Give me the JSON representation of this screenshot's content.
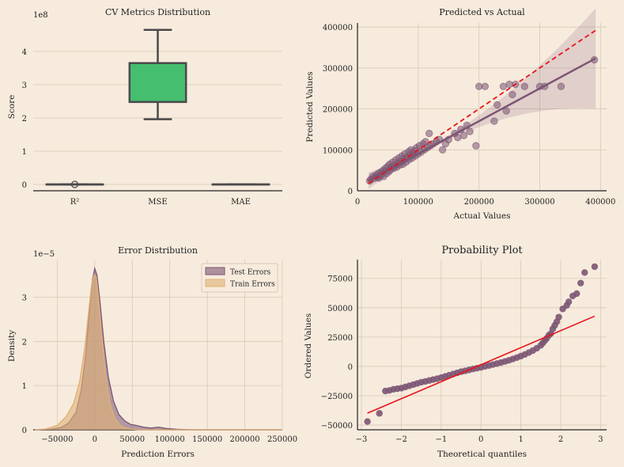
{
  "colors": {
    "background": "#f7ebdd",
    "grid": "#d9c9b6",
    "box_fill": "#45be70",
    "box_edge": "#4a4a4a",
    "purple": "#7b5573",
    "tan": "#e0b174",
    "red": "#e8131a"
  },
  "chart_data": [
    {
      "type": "box",
      "title": "CV Metrics Distribution",
      "ylabel": "Score",
      "offset_label": "1e8",
      "categories": [
        "R²",
        "MSE",
        "MAE"
      ],
      "yticks": [
        "0",
        "1",
        "2",
        "3",
        "4"
      ],
      "ylim": [
        -0.2,
        4.6
      ],
      "boxes": [
        {
          "name": "R²",
          "min": 0.0,
          "q1": 0.0,
          "median": 0.0,
          "q3": 0.0,
          "max": 0.0,
          "outliers": [
            0.0
          ]
        },
        {
          "name": "MSE",
          "min": 1.96,
          "q1": 2.48,
          "median": 3.65,
          "q3": 3.65,
          "max": 4.65,
          "outliers": []
        },
        {
          "name": "MAE",
          "min": 0.0,
          "q1": 0.0,
          "median": 0.0,
          "q3": 0.0,
          "max": 0.0,
          "outliers": []
        }
      ]
    },
    {
      "type": "scatter",
      "title": "Predicted vs Actual",
      "xlabel": "Actual Values",
      "ylabel": "Predicted Values",
      "xticks": [
        "0",
        "100000",
        "200000",
        "300000",
        "400000"
      ],
      "yticks": [
        "0",
        "100000",
        "200000",
        "300000",
        "400000"
      ],
      "xlim": [
        0,
        410000
      ],
      "ylim": [
        0,
        410000
      ],
      "points": [
        [
          20000,
          24000
        ],
        [
          22000,
          28000
        ],
        [
          25000,
          35000
        ],
        [
          27000,
          30000
        ],
        [
          30000,
          38000
        ],
        [
          32000,
          33000
        ],
        [
          34000,
          42000
        ],
        [
          35000,
          31000
        ],
        [
          37000,
          36000
        ],
        [
          38000,
          45000
        ],
        [
          40000,
          40000
        ],
        [
          42000,
          50000
        ],
        [
          43000,
          35000
        ],
        [
          45000,
          48000
        ],
        [
          46000,
          55000
        ],
        [
          48000,
          42000
        ],
        [
          50000,
          60000
        ],
        [
          52000,
          47000
        ],
        [
          53000,
          65000
        ],
        [
          55000,
          52000
        ],
        [
          56000,
          58000
        ],
        [
          58000,
          70000
        ],
        [
          60000,
          55000
        ],
        [
          62000,
          62000
        ],
        [
          63000,
          75000
        ],
        [
          65000,
          58000
        ],
        [
          67000,
          68000
        ],
        [
          68000,
          80000
        ],
        [
          70000,
          63000
        ],
        [
          72000,
          72000
        ],
        [
          73000,
          85000
        ],
        [
          75000,
          65000
        ],
        [
          77000,
          78000
        ],
        [
          78000,
          90000
        ],
        [
          80000,
          70000
        ],
        [
          82000,
          82000
        ],
        [
          84000,
          95000
        ],
        [
          85000,
          76000
        ],
        [
          87000,
          88000
        ],
        [
          88000,
          100000
        ],
        [
          90000,
          80000
        ],
        [
          92000,
          92000
        ],
        [
          94000,
          98000
        ],
        [
          95000,
          85000
        ],
        [
          97000,
          105000
        ],
        [
          100000,
          90000
        ],
        [
          102000,
          110000
        ],
        [
          105000,
          95000
        ],
        [
          108000,
          115000
        ],
        [
          110000,
          100000
        ],
        [
          112000,
          120000
        ],
        [
          115000,
          105000
        ],
        [
          118000,
          140000
        ],
        [
          120000,
          110000
        ],
        [
          125000,
          115000
        ],
        [
          130000,
          120000
        ],
        [
          135000,
          125000
        ],
        [
          140000,
          100000
        ],
        [
          145000,
          115000
        ],
        [
          150000,
          125000
        ],
        [
          160000,
          140000
        ],
        [
          165000,
          130000
        ],
        [
          170000,
          150000
        ],
        [
          175000,
          135000
        ],
        [
          180000,
          160000
        ],
        [
          185000,
          145000
        ],
        [
          195000,
          110000
        ],
        [
          200000,
          255000
        ],
        [
          210000,
          255000
        ],
        [
          225000,
          170000
        ],
        [
          230000,
          210000
        ],
        [
          240000,
          255000
        ],
        [
          245000,
          195000
        ],
        [
          250000,
          260000
        ],
        [
          255000,
          235000
        ],
        [
          260000,
          260000
        ],
        [
          275000,
          255000
        ],
        [
          300000,
          255000
        ],
        [
          308000,
          255000
        ],
        [
          335000,
          255000
        ],
        [
          390000,
          320000
        ]
      ],
      "regression": {
        "slope": 0.8,
        "intercept": 10000,
        "x_range": [
          18000,
          392000
        ]
      },
      "identity_line": {
        "x_range": [
          18000,
          392000
        ]
      }
    },
    {
      "type": "density",
      "title": "Error Distribution",
      "xlabel": "Prediction Errors",
      "ylabel": "Density",
      "offset_label": "1e−5",
      "xticks": [
        "−50000",
        "0",
        "50000",
        "100000",
        "150000",
        "200000",
        "250000"
      ],
      "yticks": [
        "0",
        "1",
        "2",
        "3"
      ],
      "xlim": [
        -82000,
        250000
      ],
      "ylim": [
        0,
        3.85
      ],
      "legend_position": "top-right",
      "series": [
        {
          "name": "Test Errors",
          "points": [
            [
              -80000,
              0
            ],
            [
              -60000,
              0.01
            ],
            [
              -45000,
              0.05
            ],
            [
              -35000,
              0.15
            ],
            [
              -25000,
              0.4
            ],
            [
              -18000,
              0.9
            ],
            [
              -12000,
              1.7
            ],
            [
              -7000,
              2.7
            ],
            [
              -3000,
              3.4
            ],
            [
              0,
              3.65
            ],
            [
              3000,
              3.5
            ],
            [
              7000,
              2.9
            ],
            [
              12000,
              2.0
            ],
            [
              18000,
              1.2
            ],
            [
              25000,
              0.65
            ],
            [
              32000,
              0.35
            ],
            [
              40000,
              0.2
            ],
            [
              48000,
              0.12
            ],
            [
              55000,
              0.1
            ],
            [
              65000,
              0.06
            ],
            [
              75000,
              0.04
            ],
            [
              85000,
              0.06
            ],
            [
              95000,
              0.03
            ],
            [
              110000,
              0.01
            ],
            [
              130000,
              0
            ],
            [
              250000,
              0
            ]
          ]
        },
        {
          "name": "Train Errors",
          "points": [
            [
              -80000,
              0
            ],
            [
              -65000,
              0.02
            ],
            [
              -50000,
              0.1
            ],
            [
              -38000,
              0.3
            ],
            [
              -28000,
              0.6
            ],
            [
              -20000,
              1.1
            ],
            [
              -13000,
              1.9
            ],
            [
              -8000,
              2.7
            ],
            [
              -4000,
              3.3
            ],
            [
              -1000,
              3.5
            ],
            [
              2000,
              3.45
            ],
            [
              5000,
              3.0
            ],
            [
              9000,
              2.2
            ],
            [
              14000,
              1.3
            ],
            [
              20000,
              0.6
            ],
            [
              27000,
              0.25
            ],
            [
              35000,
              0.08
            ],
            [
              45000,
              0.02
            ],
            [
              60000,
              0
            ],
            [
              250000,
              0
            ]
          ]
        }
      ]
    },
    {
      "type": "scatter",
      "title": "Probability Plot",
      "xlabel": "Theoretical quantiles",
      "ylabel": "Ordered Values",
      "xticks": [
        "−3",
        "−2",
        "−1",
        "0",
        "1",
        "2",
        "3"
      ],
      "yticks": [
        "−50000",
        "−25000",
        "0",
        "25000",
        "50000",
        "75000"
      ],
      "xlim": [
        -3.1,
        3.15
      ],
      "ylim": [
        -54000,
        91000
      ],
      "fit_line": {
        "slope": 14500,
        "intercept": 1500,
        "x_range": [
          -2.85,
          2.85
        ]
      },
      "points": [
        [
          -2.85,
          -47000
        ],
        [
          -2.55,
          -40000
        ],
        [
          -2.4,
          -21000
        ],
        [
          -2.3,
          -20500
        ],
        [
          -2.2,
          -19500
        ],
        [
          -2.1,
          -19000
        ],
        [
          -2.0,
          -18500
        ],
        [
          -1.9,
          -17500
        ],
        [
          -1.8,
          -16500
        ],
        [
          -1.7,
          -15500
        ],
        [
          -1.6,
          -14500
        ],
        [
          -1.5,
          -13500
        ],
        [
          -1.4,
          -12800
        ],
        [
          -1.3,
          -12000
        ],
        [
          -1.2,
          -11200
        ],
        [
          -1.1,
          -10500
        ],
        [
          -1.0,
          -9500
        ],
        [
          -0.9,
          -8500
        ],
        [
          -0.8,
          -7500
        ],
        [
          -0.7,
          -6500
        ],
        [
          -0.6,
          -5500
        ],
        [
          -0.5,
          -4500
        ],
        [
          -0.4,
          -3800
        ],
        [
          -0.3,
          -3000
        ],
        [
          -0.2,
          -2200
        ],
        [
          -0.1,
          -1500
        ],
        [
          0.0,
          -800
        ],
        [
          0.1,
          0
        ],
        [
          0.2,
          800
        ],
        [
          0.3,
          1600
        ],
        [
          0.4,
          2400
        ],
        [
          0.5,
          3300
        ],
        [
          0.6,
          4200
        ],
        [
          0.7,
          5200
        ],
        [
          0.8,
          6300
        ],
        [
          0.9,
          7500
        ],
        [
          1.0,
          8800
        ],
        [
          1.1,
          10200
        ],
        [
          1.2,
          11800
        ],
        [
          1.3,
          13500
        ],
        [
          1.4,
          15500
        ],
        [
          1.5,
          18000
        ],
        [
          1.55,
          20000
        ],
        [
          1.6,
          22000
        ],
        [
          1.65,
          24000
        ],
        [
          1.7,
          26500
        ],
        [
          1.75,
          28000
        ],
        [
          1.8,
          32000
        ],
        [
          1.85,
          35000
        ],
        [
          1.9,
          38000
        ],
        [
          1.95,
          42000
        ],
        [
          2.05,
          49000
        ],
        [
          2.15,
          52000
        ],
        [
          2.2,
          55000
        ],
        [
          2.3,
          60000
        ],
        [
          2.4,
          62000
        ],
        [
          2.5,
          71000
        ],
        [
          2.6,
          80000
        ],
        [
          2.85,
          85000
        ]
      ]
    }
  ]
}
